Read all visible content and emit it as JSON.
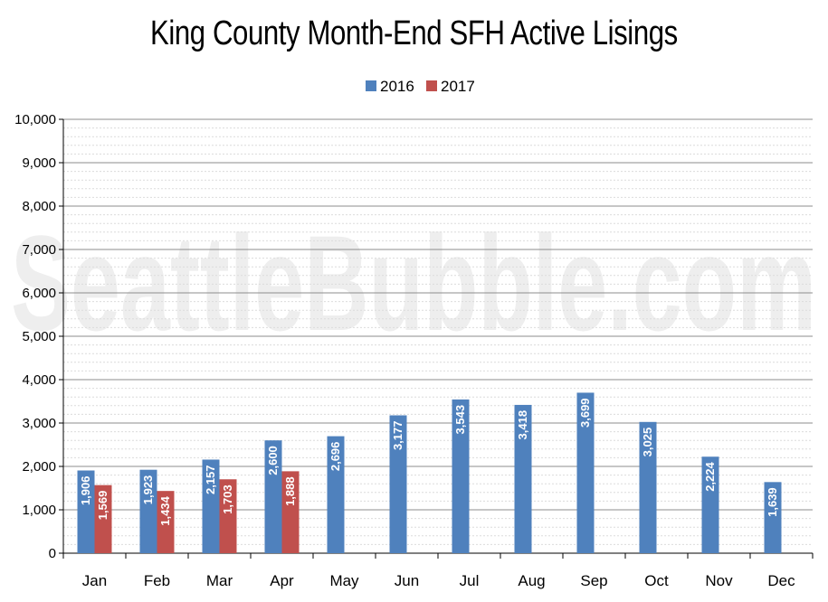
{
  "chart_data": {
    "type": "bar",
    "title": "King County Month-End SFH Active Lisings",
    "watermark": "SeattleBubble.com",
    "categories": [
      "Jan",
      "Feb",
      "Mar",
      "Apr",
      "May",
      "Jun",
      "Jul",
      "Aug",
      "Sep",
      "Oct",
      "Nov",
      "Dec"
    ],
    "series": [
      {
        "name": "2016",
        "color": "#4f81bd",
        "values": [
          1906,
          1923,
          2157,
          2600,
          2696,
          3177,
          3543,
          3418,
          3699,
          3025,
          2224,
          1639
        ],
        "labels": [
          "1,906",
          "1,923",
          "2,157",
          "2,600",
          "2,696",
          "3,177",
          "3,543",
          "3,418",
          "3,699",
          "3,025",
          "2,224",
          "1,639"
        ]
      },
      {
        "name": "2017",
        "color": "#c0504d",
        "values": [
          1569,
          1434,
          1703,
          1888,
          null,
          null,
          null,
          null,
          null,
          null,
          null,
          null
        ],
        "labels": [
          "1,569",
          "1,434",
          "1,703",
          "1,888",
          "",
          "",
          "",
          "",
          "",
          "",
          "",
          ""
        ]
      }
    ],
    "ylim": [
      0,
      10000
    ],
    "yticks": [
      0,
      1000,
      2000,
      3000,
      4000,
      5000,
      6000,
      7000,
      8000,
      9000,
      10000
    ],
    "ytick_labels": [
      "0",
      "1,000",
      "2,000",
      "3,000",
      "4,000",
      "5,000",
      "6,000",
      "7,000",
      "8,000",
      "9,000",
      "10,000"
    ],
    "legend_position": "top-center",
    "grid": true
  }
}
